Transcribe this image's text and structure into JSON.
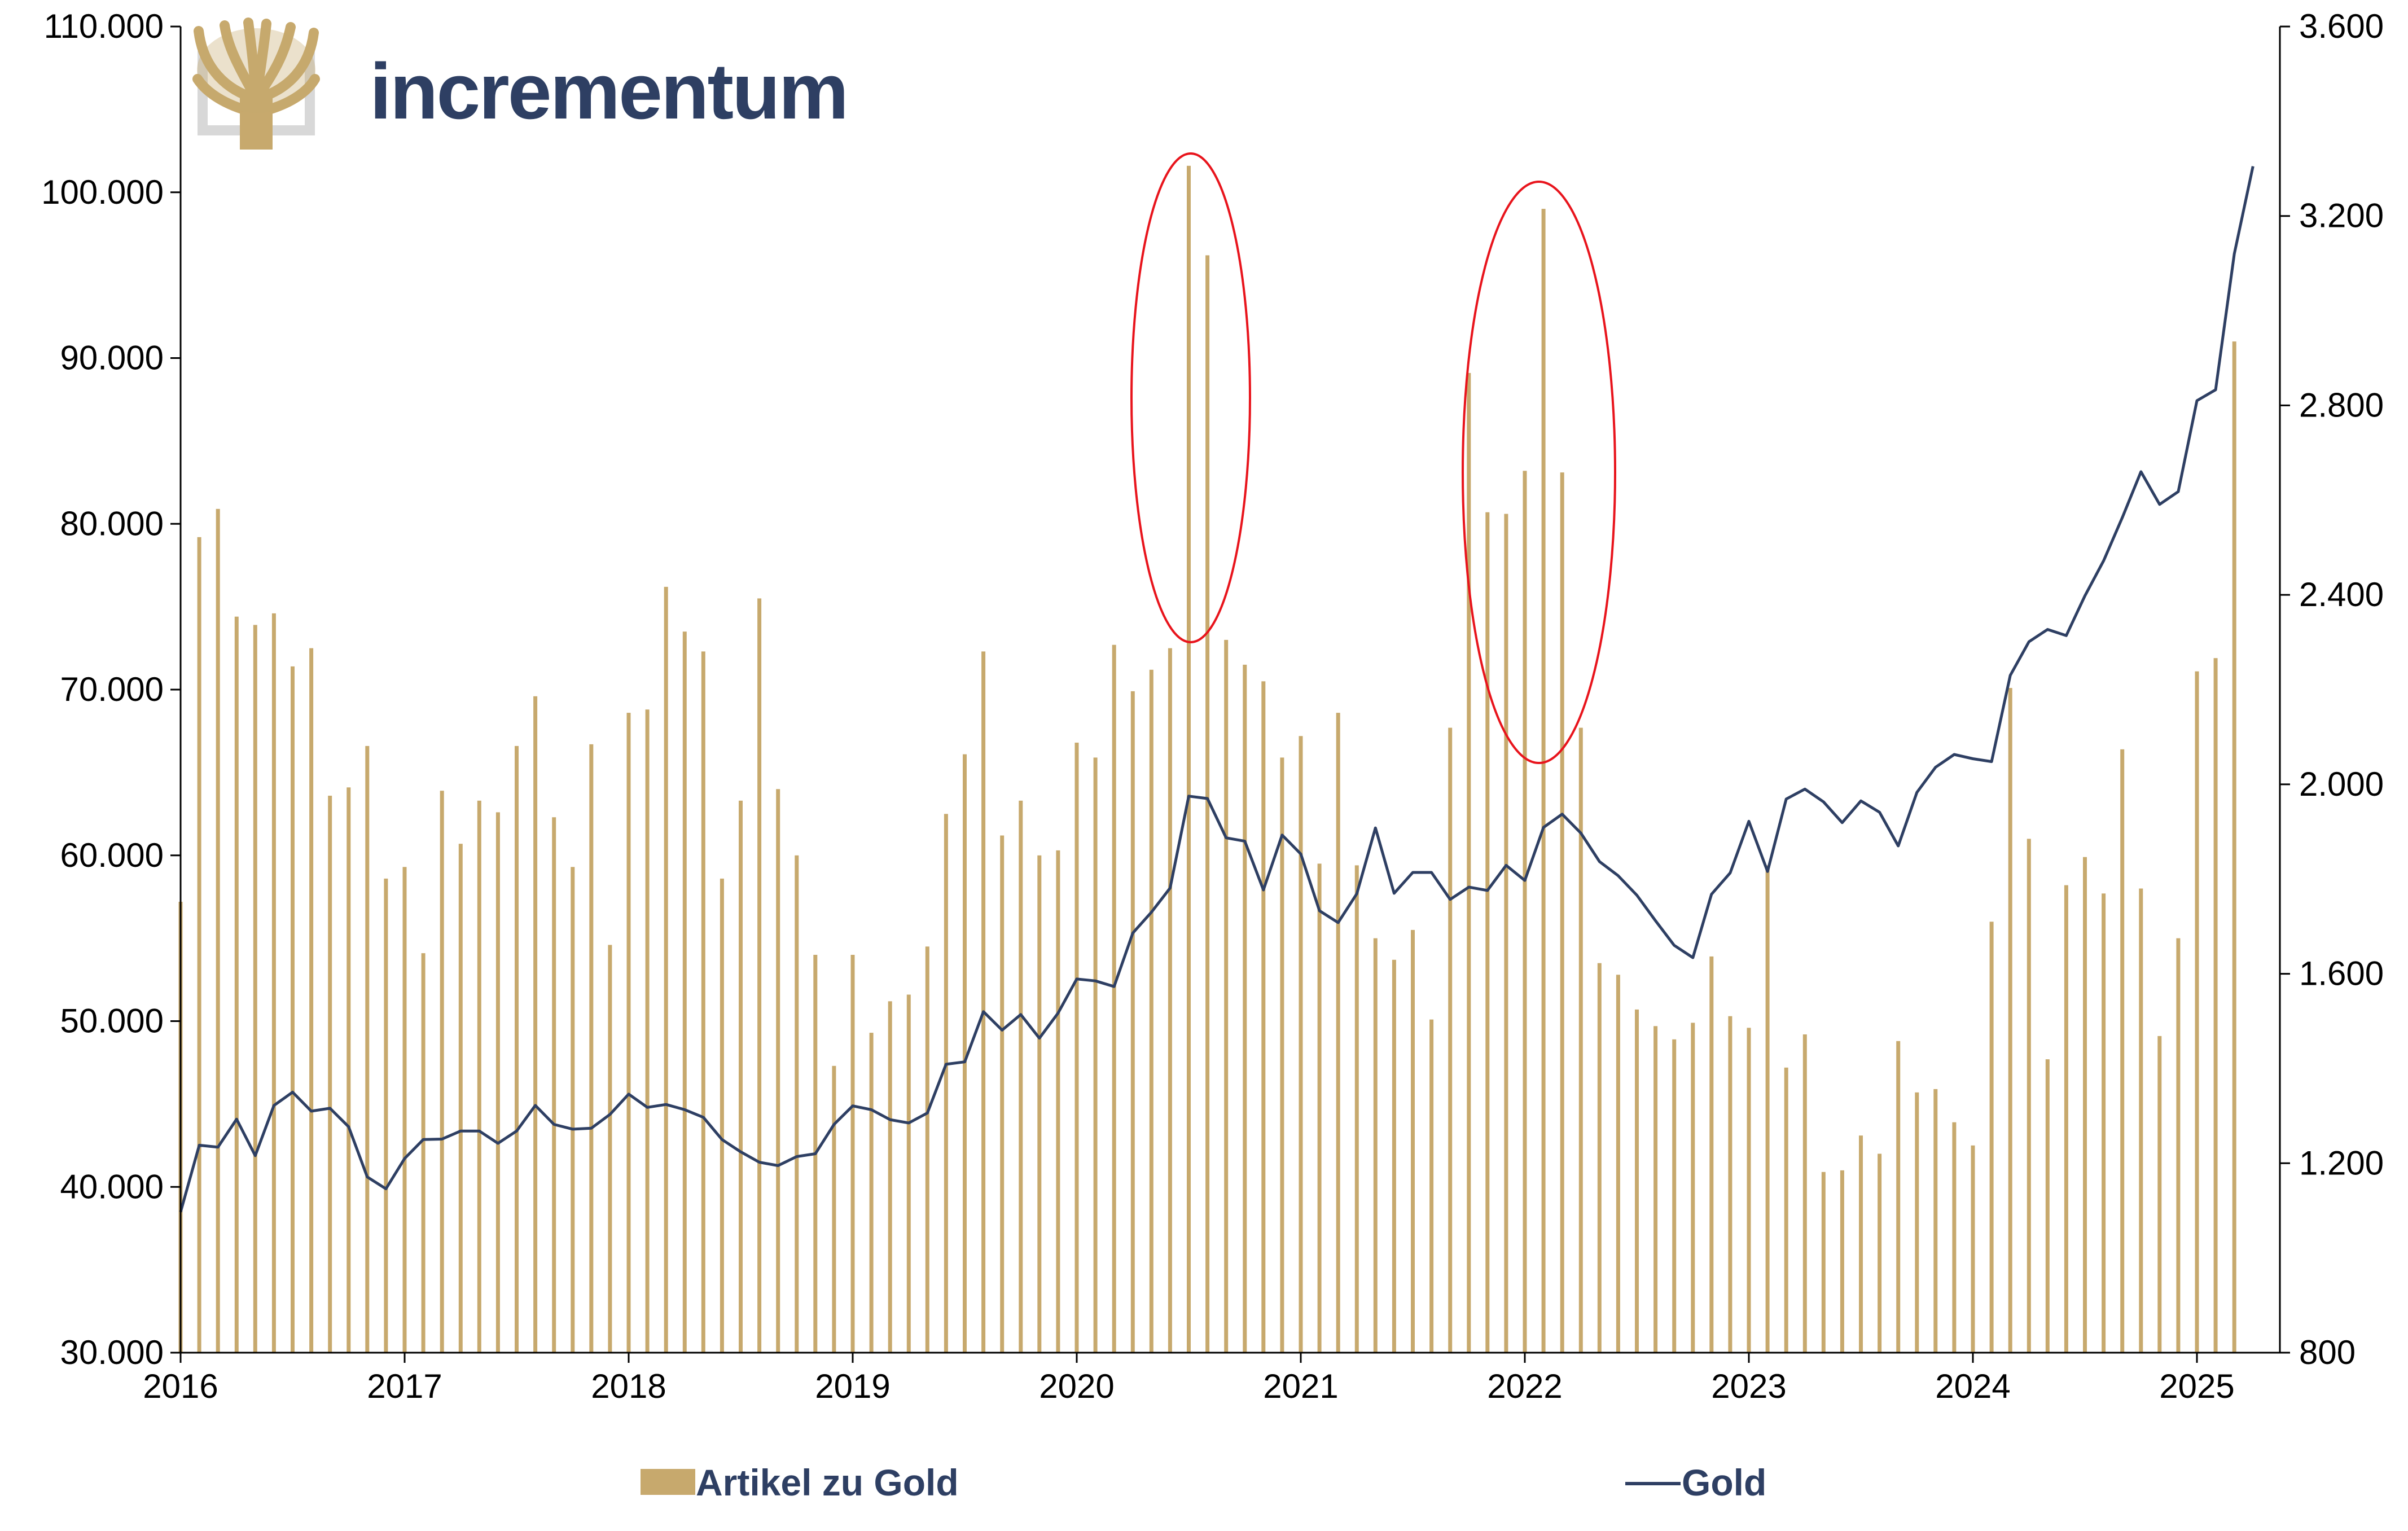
{
  "brand": {
    "name": "incrementum",
    "color": "#2e3f63",
    "logo_color": "#c7a96d",
    "logo": "tree-logo"
  },
  "chart_data": {
    "type": "bar",
    "combo": "bar + line (secondary axis)",
    "start": "2016-01",
    "frequency": "monthly",
    "x_tick_labels": [
      "2016",
      "2017",
      "2018",
      "2019",
      "2020",
      "2021",
      "2022",
      "2023",
      "2024",
      "2025"
    ],
    "y_left": {
      "ylim": [
        30000,
        110000
      ],
      "ticks": [
        "30.000",
        "40.000",
        "50.000",
        "60.000",
        "70.000",
        "80.000",
        "90.000",
        "100.000",
        "110.000"
      ]
    },
    "y_right": {
      "ylim": [
        800,
        3600
      ],
      "ticks": [
        "800",
        "1.200",
        "1.600",
        "2.000",
        "2.400",
        "2.800",
        "3.200",
        "3.600"
      ]
    },
    "grid": false,
    "legend_position": "bottom",
    "series": [
      {
        "name": "Artikel zu Gold",
        "type": "bar",
        "axis": "left",
        "color": "#c7a96d",
        "values": [
          57200,
          79200,
          80900,
          74400,
          73900,
          74600,
          71400,
          72500,
          63600,
          64100,
          66600,
          58600,
          59300,
          54100,
          63900,
          60700,
          63300,
          62600,
          66600,
          69600,
          62300,
          59300,
          66700,
          54600,
          68600,
          68800,
          76200,
          73500,
          72300,
          58600,
          63300,
          75500,
          64000,
          60000,
          54000,
          47300,
          54000,
          49300,
          51200,
          51600,
          54500,
          62500,
          66100,
          72300,
          61200,
          63300,
          60000,
          60300,
          66800,
          65900,
          72700,
          69900,
          71200,
          72500,
          101600,
          96200,
          73000,
          71500,
          70500,
          65900,
          67200,
          59500,
          68600,
          59400,
          55000,
          53700,
          55500,
          50100,
          67700,
          89100,
          80700,
          80600,
          83200,
          99000,
          83100,
          67700,
          53500,
          52800,
          50700,
          49700,
          48900,
          49900,
          53900,
          50300,
          49600,
          59400,
          47200,
          49200,
          40900,
          41000,
          43100,
          42000,
          48800,
          45700,
          45900,
          43900,
          42500,
          56000,
          70100,
          61000,
          47700,
          58200,
          59900,
          57700,
          66400,
          58000,
          49100,
          55000,
          71100,
          71900,
          91000
        ]
      },
      {
        "name": "Gold",
        "type": "line",
        "axis": "right",
        "color": "#2e3f63",
        "values": [
          1097,
          1238,
          1234,
          1293,
          1216,
          1322,
          1350,
          1310,
          1316,
          1277,
          1171,
          1146,
          1210,
          1250,
          1251,
          1268,
          1268,
          1242,
          1268,
          1322,
          1282,
          1272,
          1274,
          1303,
          1346,
          1318,
          1324,
          1313,
          1297,
          1250,
          1224,
          1202,
          1195,
          1214,
          1220,
          1282,
          1321,
          1313,
          1292,
          1285,
          1306,
          1409,
          1414,
          1520,
          1481,
          1514,
          1464,
          1517,
          1589,
          1585,
          1573,
          1686,
          1730,
          1781,
          1975,
          1970,
          1887,
          1880,
          1777,
          1893,
          1853,
          1733,
          1708,
          1769,
          1908,
          1770,
          1814,
          1814,
          1757,
          1783,
          1776,
          1829,
          1797,
          1909,
          1937,
          1897,
          1837,
          1807,
          1766,
          1712,
          1660,
          1634,
          1768,
          1813,
          1922,
          1816,
          1969,
          1990,
          1963,
          1919,
          1965,
          1941,
          1870,
          1983,
          2036,
          2063,
          2054,
          2048,
          2230,
          2301,
          2327,
          2314,
          2398,
          2472,
          2563,
          2660,
          2591,
          2618,
          2810,
          2833,
          3120,
          3305
        ]
      }
    ]
  },
  "annotations": [
    {
      "type": "ellipse",
      "color": "#e8141c",
      "label": ""
    },
    {
      "type": "ellipse",
      "color": "#e8141c",
      "label": ""
    }
  ]
}
